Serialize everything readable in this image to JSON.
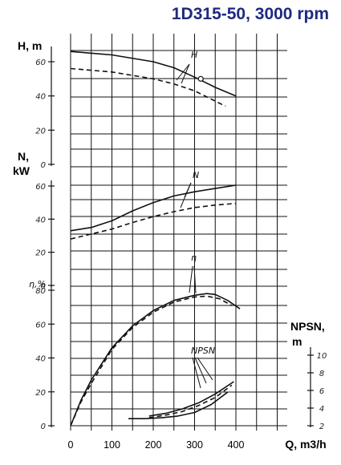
{
  "title": "1D315-50, 3000 rpm",
  "colors": {
    "title": "#1f2a80",
    "ink": "#111111",
    "background": "#ffffff"
  },
  "chart_data": {
    "type": "line",
    "title": "1D315-50, 3000 rpm",
    "x_axis": {
      "label": "Q, m3/h",
      "range": [
        0,
        400
      ],
      "ticks": [
        "0",
        "100",
        "200",
        "300",
        "400"
      ]
    },
    "grid": true,
    "panels": [
      {
        "axis_label": "H, m",
        "range": [
          0,
          65
        ],
        "ticks": [
          "0",
          "20",
          "40",
          "60"
        ],
        "annotation": "H",
        "series": [
          {
            "style": "solid",
            "x": [
              0,
              100,
              200,
              250,
              300,
              350,
              400
            ],
            "y": [
              66,
              64,
              60,
              56.5,
              51,
              45,
              40
            ]
          },
          {
            "style": "dashed",
            "x": [
              0,
              100,
              200,
              250,
              300,
              350,
              375
            ],
            "y": [
              56,
              54,
              50,
              47,
              43,
              37,
              34
            ]
          }
        ],
        "markers": [
          {
            "x": 315,
            "y": 50
          }
        ]
      },
      {
        "axis_label": "N, kW",
        "range": [
          0,
          65
        ],
        "ticks": [
          "0",
          "20",
          "40",
          "60"
        ],
        "annotation": "N",
        "series": [
          {
            "style": "solid",
            "x": [
              0,
              50,
              100,
              150,
              200,
              250,
              300,
              350,
              400
            ],
            "y": [
              33,
              35,
              39,
              45,
              50,
              54,
              56.5,
              58.5,
              60.5
            ]
          },
          {
            "style": "dashed",
            "x": [
              0,
              50,
              100,
              150,
              200,
              250,
              300,
              350,
              400
            ],
            "y": [
              28,
              31,
              34,
              38,
              41.5,
              44.5,
              47,
              48.5,
              49.5
            ]
          }
        ]
      },
      {
        "axis_label": "η,%",
        "range": [
          0,
          80
        ],
        "ticks": [
          "0",
          "20",
          "40",
          "60",
          "80"
        ],
        "annotation": "η",
        "series": [
          {
            "style": "solid",
            "x": [
              0,
              25,
              50,
              100,
              150,
              200,
              250,
              300,
              330,
              350,
              380,
              410
            ],
            "y": [
              0,
              15,
              27,
              46,
              59,
              68,
              74,
              77,
              78,
              77.5,
              74,
              69
            ]
          },
          {
            "style": "dashed",
            "x": [
              0,
              25,
              50,
              100,
              150,
              200,
              250,
              300,
              330,
              360,
              390
            ],
            "y": [
              0,
              14,
              25,
              45,
              58,
              67,
              73,
              76,
              76.5,
              75,
              71
            ]
          }
        ]
      },
      {
        "axis_label": "NPSN, m",
        "range": [
          2,
          10
        ],
        "ticks": [
          "2",
          "4",
          "6",
          "8",
          "10"
        ],
        "annotation": "NPSN",
        "series": [
          {
            "style": "solid",
            "x": [
              140,
              180,
              220,
              260,
              300,
              340,
              380
            ],
            "y": [
              2.8,
              2.8,
              2.9,
              3.1,
              3.5,
              4.4,
              5.8
            ]
          },
          {
            "style": "dashed",
            "x": [
              190,
              230,
              270,
              310,
              350,
              390
            ],
            "y": [
              2.9,
              3.2,
              3.6,
              4.3,
              5.2,
              6.6
            ]
          },
          {
            "style": "solid",
            "x": [
              190,
              230,
              270,
              310,
              350,
              395
            ],
            "y": [
              3.1,
              3.4,
              3.9,
              4.6,
              5.6,
              7.0
            ]
          }
        ]
      }
    ]
  }
}
